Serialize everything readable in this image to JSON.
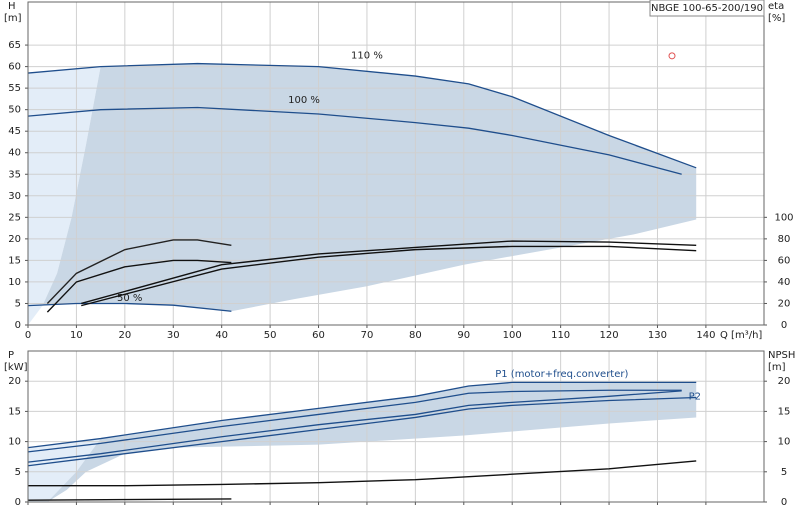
{
  "chart_data": [
    {
      "type": "line",
      "title": "NBGE 100-65-200/190",
      "xlabel": "Q [m³/h]",
      "ylabel": [
        "H",
        "[m]"
      ],
      "y2label": [
        "eta",
        "[%]"
      ],
      "xlim": [
        0,
        152
      ],
      "xticks": [
        0,
        10,
        20,
        30,
        40,
        50,
        60,
        70,
        80,
        90,
        100,
        110,
        120,
        130,
        140
      ],
      "ylim": [
        0,
        75
      ],
      "yticks": [
        0,
        5,
        10,
        15,
        20,
        25,
        30,
        35,
        40,
        45,
        50,
        55,
        60,
        65
      ],
      "y2lim": [
        0,
        300
      ],
      "y2ticks": [
        0,
        20,
        40,
        60,
        80,
        100
      ],
      "grid": true,
      "regions": [
        {
          "color": "#e3edf8",
          "x": [
            0,
            0,
            15,
            12,
            9,
            6,
            3
          ],
          "values": [
            0,
            58.5,
            60,
            42,
            25,
            12,
            4.5
          ]
        },
        {
          "color": "#c9d7e5",
          "x": [
            3,
            6,
            9,
            12,
            15,
            35,
            60,
            80,
            91,
            100,
            120,
            138,
            138,
            125,
            110,
            90,
            70,
            55,
            42,
            30,
            20,
            10
          ],
          "values": [
            4.5,
            12,
            25,
            42,
            60,
            60.7,
            60,
            57.8,
            56,
            53,
            44,
            36.5,
            24.5,
            21,
            18,
            14,
            9,
            6,
            3.2,
            4.6,
            5,
            5
          ]
        }
      ],
      "series": [
        {
          "name": "110 %",
          "color": "#1f4e8c",
          "x": [
            0,
            15,
            35,
            60,
            80,
            91,
            100,
            120,
            138
          ],
          "values": [
            58.5,
            60,
            60.7,
            60,
            57.8,
            56,
            53,
            44,
            36.5
          ]
        },
        {
          "name": "100 %",
          "color": "#1f4e8c",
          "x": [
            0,
            15,
            35,
            60,
            80,
            91,
            100,
            120,
            135
          ],
          "values": [
            48.5,
            50,
            50.5,
            49,
            47,
            45.7,
            44,
            39.5,
            35
          ]
        },
        {
          "name": "50 %",
          "color": "#1f4e8c",
          "x": [
            0,
            10,
            20,
            30,
            42
          ],
          "values": [
            4.5,
            5,
            5,
            4.6,
            3.2
          ]
        },
        {
          "color": "#222222",
          "axis": "y2",
          "x": [
            4,
            10,
            20,
            30,
            35,
            42
          ],
          "values": [
            20,
            48,
            70,
            79,
            79,
            74
          ]
        },
        {
          "color": "#111111",
          "axis": "y2",
          "x": [
            4,
            10,
            20,
            30,
            35,
            42
          ],
          "values": [
            12,
            40,
            54,
            60,
            60,
            58
          ]
        },
        {
          "color": "#111111",
          "axis": "y2",
          "x": [
            11,
            40,
            60,
            80,
            100,
            120,
            138
          ],
          "values": [
            20,
            56,
            66,
            72,
            78,
            77,
            74
          ]
        },
        {
          "color": "#111111",
          "axis": "y2",
          "x": [
            11,
            40,
            60,
            80,
            100,
            120,
            138
          ],
          "values": [
            18,
            52,
            63,
            70,
            73,
            73,
            69
          ]
        }
      ],
      "marker": {
        "x": 133,
        "y": 62.5,
        "color": "#e05050"
      }
    },
    {
      "type": "line",
      "ylabel": [
        "P",
        "[kW]"
      ],
      "y2label": [
        "NPSH",
        "[m]"
      ],
      "xlim": [
        0,
        152
      ],
      "xticks": [
        0,
        10,
        20,
        30,
        40,
        50,
        60,
        70,
        80,
        90,
        100,
        110,
        120,
        130,
        140
      ],
      "ylim": [
        0,
        25
      ],
      "yticks": [
        0,
        5,
        10,
        15,
        20
      ],
      "y2lim": [
        0,
        25
      ],
      "y2ticks": [
        0,
        5,
        10,
        15,
        20
      ],
      "grid": true,
      "regions": [
        {
          "color": "#e3edf8",
          "x": [
            0,
            0,
            15,
            10,
            4
          ],
          "values": [
            0,
            9,
            10.5,
            5,
            0
          ]
        },
        {
          "color": "#c9d7e5",
          "x": [
            4,
            10,
            15,
            40,
            60,
            80,
            91,
            100,
            120,
            138,
            138,
            120,
            90,
            60,
            30,
            20,
            12,
            8
          ],
          "values": [
            0,
            5,
            10.5,
            13.5,
            15.5,
            17.5,
            19.2,
            19.8,
            19.8,
            19.8,
            14,
            13,
            11,
            9.5,
            9,
            8,
            5,
            2
          ]
        }
      ],
      "series": [
        {
          "name": "P1 (motor+freq.converter)",
          "color": "#1f4e8c",
          "x": [
            0,
            15,
            40,
            60,
            80,
            91,
            100,
            120,
            138
          ],
          "values": [
            9,
            10.5,
            13.5,
            15.5,
            17.5,
            19.2,
            19.8,
            19.8,
            19.8
          ]
        },
        {
          "color": "#1f4e8c",
          "x": [
            0,
            15,
            40,
            60,
            80,
            91,
            100,
            120,
            135
          ],
          "values": [
            8.3,
            9.7,
            12.5,
            14.5,
            16.5,
            18,
            18.3,
            18.5,
            18.5
          ]
        },
        {
          "name": "P2",
          "color": "#1f4e8c",
          "x": [
            0,
            15,
            40,
            60,
            80,
            91,
            100,
            120,
            135
          ],
          "values": [
            6.6,
            8,
            10.8,
            12.8,
            14.5,
            16,
            16.5,
            17.5,
            18.4
          ]
        },
        {
          "color": "#1f4e8c",
          "x": [
            0,
            15,
            40,
            60,
            80,
            91,
            100,
            120,
            138
          ],
          "values": [
            6,
            7.5,
            10,
            12,
            14,
            15.4,
            16,
            16.8,
            17.3
          ]
        },
        {
          "color": "#111111",
          "axis": "y2",
          "x": [
            0,
            20,
            40,
            60,
            80,
            100,
            120,
            138
          ],
          "values": [
            2.7,
            2.7,
            2.9,
            3.2,
            3.7,
            4.6,
            5.5,
            6.8
          ]
        },
        {
          "color": "#111111",
          "axis": "y2",
          "x": [
            0,
            20,
            42
          ],
          "values": [
            0.3,
            0.4,
            0.5
          ]
        }
      ]
    }
  ]
}
